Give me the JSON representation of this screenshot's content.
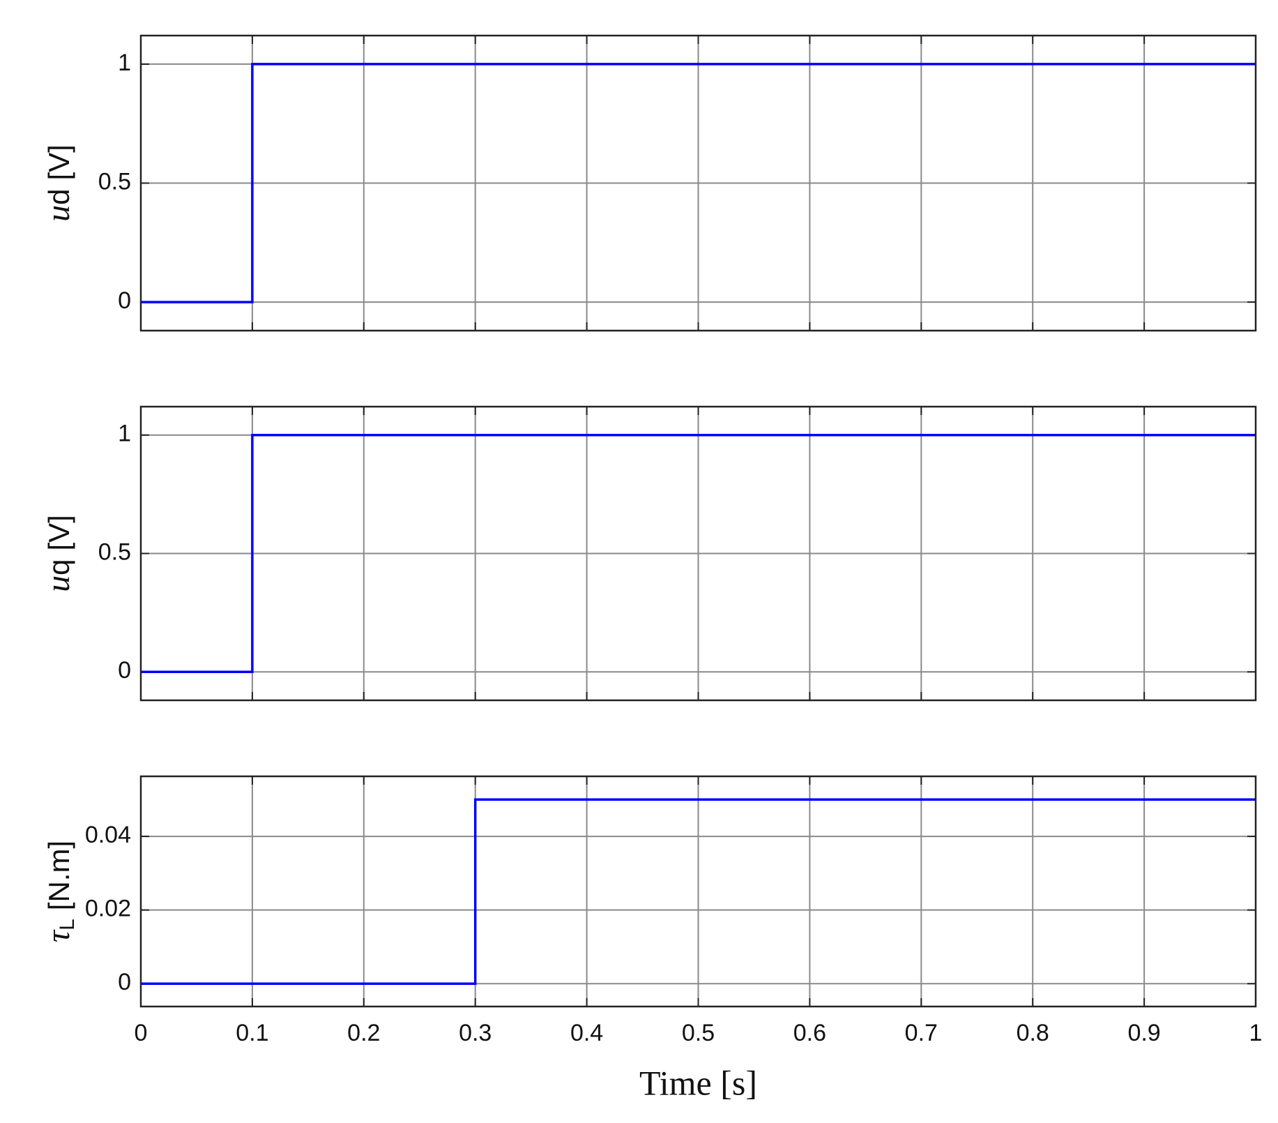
{
  "chart_data": [
    {
      "type": "line",
      "ylabel_symbol": "u",
      "ylabel_sub": "d",
      "ylabel_unit": "[V]",
      "x": [
        0,
        0.1,
        0.1,
        1
      ],
      "series": [
        {
          "color": "#0000ff",
          "values": [
            0,
            0,
            1,
            1
          ]
        }
      ],
      "xlim": [
        0,
        1
      ],
      "xticks": [
        0,
        0.1,
        0.2,
        0.3,
        0.4,
        0.5,
        0.6,
        0.7,
        0.8,
        0.9,
        1
      ],
      "ylim": [
        -0.12,
        1.12
      ],
      "yticks": [
        0,
        0.5,
        1
      ],
      "grid": true
    },
    {
      "type": "line",
      "ylabel_symbol": "u",
      "ylabel_sub": "q",
      "ylabel_unit": "[V]",
      "x": [
        0,
        0.1,
        0.1,
        1
      ],
      "series": [
        {
          "color": "#0000ff",
          "values": [
            0,
            0,
            1,
            1
          ]
        }
      ],
      "xlim": [
        0,
        1
      ],
      "xticks": [
        0,
        0.1,
        0.2,
        0.3,
        0.4,
        0.5,
        0.6,
        0.7,
        0.8,
        0.9,
        1
      ],
      "ylim": [
        -0.12,
        1.12
      ],
      "yticks": [
        0,
        0.5,
        1
      ],
      "grid": true
    },
    {
      "type": "line",
      "ylabel_symbol": "τ",
      "ylabel_sub": "L",
      "ylabel_unit": "[N.m]",
      "xlabel": "Time [s]",
      "x": [
        0,
        0.3,
        0.3,
        1
      ],
      "series": [
        {
          "color": "#0000ff",
          "values": [
            0,
            0,
            0.05,
            0.05
          ]
        }
      ],
      "xlim": [
        0,
        1
      ],
      "xticks": [
        0,
        0.1,
        0.2,
        0.3,
        0.4,
        0.5,
        0.6,
        0.7,
        0.8,
        0.9,
        1
      ],
      "ylim": [
        -0.0062,
        0.0563
      ],
      "yticks": [
        0,
        0.02,
        0.04
      ],
      "grid": true
    }
  ]
}
